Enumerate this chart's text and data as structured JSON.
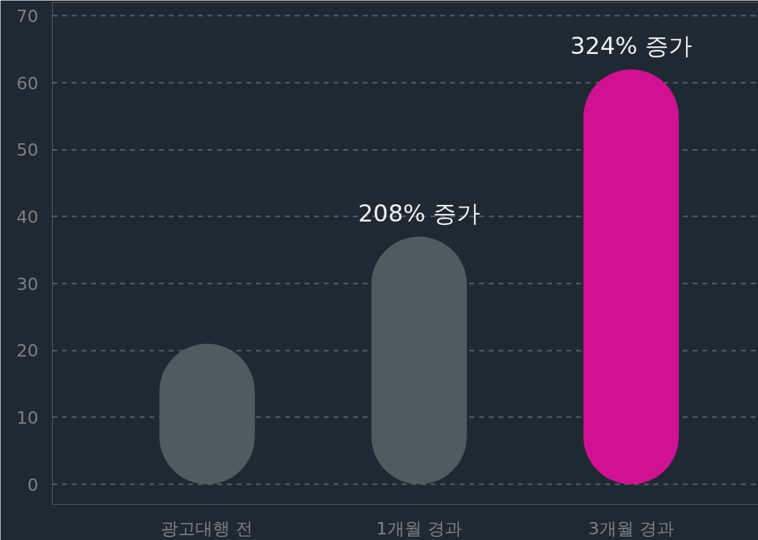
{
  "chart_data": {
    "type": "bar",
    "categories": [
      "광고대행 전",
      "1개월 경과",
      "3개월 경과"
    ],
    "values": [
      21,
      37,
      62
    ],
    "colors": [
      "#505a61",
      "#505a61",
      "#d01192"
    ],
    "annotations": [
      {
        "text": "208% 증가",
        "x": "1개월 경과",
        "y": 37
      },
      {
        "text": "324% 증가",
        "x": "3개월 경과",
        "y": 62
      }
    ],
    "ylim": [
      -3,
      72
    ],
    "yticks": [
      0,
      10,
      20,
      30,
      40,
      50,
      60,
      70
    ],
    "grid": "y"
  }
}
